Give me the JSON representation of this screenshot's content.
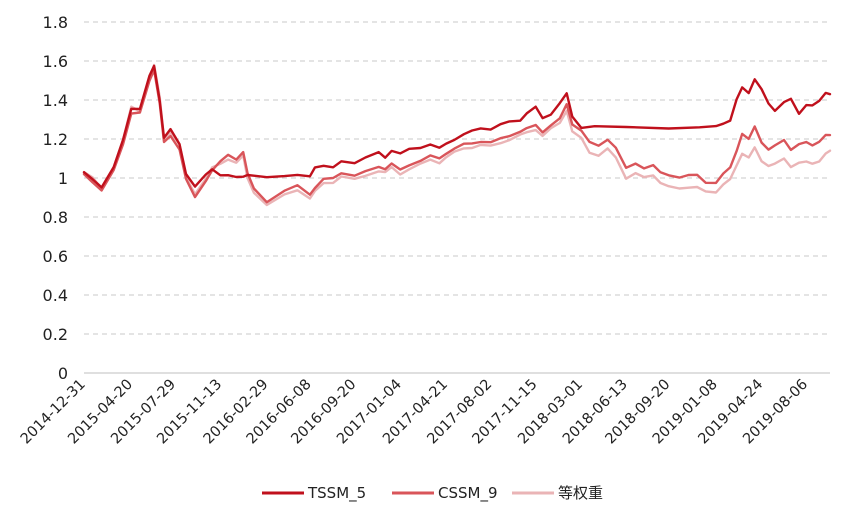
{
  "chart_data": {
    "type": "line",
    "title": "",
    "xlabel": "",
    "ylabel": "",
    "ylim": [
      0,
      1.8
    ],
    "yticks": [
      "0",
      "0.2",
      "0.4",
      "0.6",
      "0.8",
      "1",
      "1.2",
      "1.4",
      "1.6",
      "1.8"
    ],
    "xticks": [
      "2014-12-31",
      "2015-04-20",
      "2015-07-29",
      "2015-11-13",
      "2016-02-29",
      "2016-06-08",
      "2016-09-20",
      "2017-01-04",
      "2017-04-21",
      "2017-08-02",
      "2017-11-15",
      "2018-03-01",
      "2018-06-13",
      "2018-09-20",
      "2019-01-08",
      "2019-04-24",
      "2019-08-06"
    ],
    "grid": true,
    "legend_position": "bottom",
    "series": [
      {
        "name": "TSSM_5",
        "color": "#c0101c",
        "x": [
          "2014-12-31",
          "2015-01-20",
          "2015-02-10",
          "2015-03-10",
          "2015-04-01",
          "2015-04-20",
          "2015-05-10",
          "2015-06-01",
          "2015-06-12",
          "2015-06-25",
          "2015-07-05",
          "2015-07-20",
          "2015-08-10",
          "2015-08-25",
          "2015-09-15",
          "2015-10-10",
          "2015-10-25",
          "2015-11-13",
          "2015-12-01",
          "2015-12-20",
          "2016-01-05",
          "2016-01-15",
          "2016-01-30",
          "2016-02-29",
          "2016-04-10",
          "2016-05-10",
          "2016-06-08",
          "2016-06-20",
          "2016-07-10",
          "2016-08-01",
          "2016-08-20",
          "2016-09-20",
          "2016-10-15",
          "2016-11-15",
          "2016-11-30",
          "2016-12-15",
          "2017-01-04",
          "2017-01-25",
          "2017-02-20",
          "2017-03-15",
          "2017-04-05",
          "2017-04-21",
          "2017-05-10",
          "2017-06-01",
          "2017-06-20",
          "2017-07-10",
          "2017-08-02",
          "2017-08-25",
          "2017-09-15",
          "2017-10-10",
          "2017-10-25",
          "2017-11-15",
          "2017-12-01",
          "2017-12-20",
          "2018-01-10",
          "2018-01-26",
          "2018-02-08",
          "2018-03-01",
          "2018-04-01",
          "2018-06-13",
          "2018-09-20",
          "2018-12-01",
          "2019-01-08",
          "2019-01-25",
          "2019-02-10",
          "2019-02-25",
          "2019-03-10",
          "2019-03-25",
          "2019-04-08",
          "2019-04-24",
          "2019-05-10",
          "2019-05-25",
          "2019-06-15",
          "2019-07-01",
          "2019-07-20",
          "2019-08-06",
          "2019-08-20",
          "2019-09-05",
          "2019-09-20",
          "2019-09-30"
        ],
        "values": [
          1.03,
          1.0,
          0.95,
          1.05,
          1.2,
          1.36,
          1.35,
          1.52,
          1.58,
          1.4,
          1.2,
          1.25,
          1.18,
          1.02,
          0.95,
          1.02,
          1.05,
          1.01,
          1.01,
          1.01,
          1.01,
          1.01,
          1.01,
          1.01,
          1.01,
          1.01,
          1.01,
          1.06,
          1.06,
          1.05,
          1.09,
          1.08,
          1.1,
          1.13,
          1.11,
          1.14,
          1.12,
          1.15,
          1.16,
          1.17,
          1.15,
          1.18,
          1.2,
          1.22,
          1.24,
          1.26,
          1.25,
          1.27,
          1.29,
          1.3,
          1.33,
          1.36,
          1.31,
          1.33,
          1.38,
          1.43,
          1.32,
          1.26,
          1.26,
          1.26,
          1.26,
          1.26,
          1.26,
          1.28,
          1.3,
          1.4,
          1.46,
          1.44,
          1.51,
          1.45,
          1.38,
          1.35,
          1.39,
          1.4,
          1.33,
          1.38,
          1.37,
          1.39,
          1.44,
          1.43
        ]
      },
      {
        "name": "CSSM_9",
        "color": "#d9555a",
        "x": [
          "2014-12-31",
          "2015-01-20",
          "2015-02-10",
          "2015-03-10",
          "2015-04-01",
          "2015-04-20",
          "2015-05-10",
          "2015-06-01",
          "2015-06-12",
          "2015-06-25",
          "2015-07-05",
          "2015-07-20",
          "2015-08-10",
          "2015-08-25",
          "2015-09-15",
          "2015-10-10",
          "2015-10-25",
          "2015-11-13",
          "2015-12-01",
          "2015-12-20",
          "2016-01-05",
          "2016-01-15",
          "2016-01-30",
          "2016-02-29",
          "2016-04-10",
          "2016-05-10",
          "2016-06-08",
          "2016-06-20",
          "2016-07-10",
          "2016-08-01",
          "2016-08-20",
          "2016-09-20",
          "2016-10-15",
          "2016-11-15",
          "2016-11-30",
          "2016-12-15",
          "2017-01-04",
          "2017-01-25",
          "2017-02-20",
          "2017-03-15",
          "2017-04-05",
          "2017-04-21",
          "2017-05-10",
          "2017-06-01",
          "2017-06-20",
          "2017-07-10",
          "2017-08-02",
          "2017-08-25",
          "2017-09-15",
          "2017-10-10",
          "2017-10-25",
          "2017-11-15",
          "2017-12-01",
          "2017-12-20",
          "2018-01-10",
          "2018-01-26",
          "2018-02-08",
          "2018-03-01",
          "2018-03-20",
          "2018-04-10",
          "2018-05-01",
          "2018-05-20",
          "2018-06-13",
          "2018-07-05",
          "2018-07-25",
          "2018-08-15",
          "2018-09-01",
          "2018-09-20",
          "2018-10-15",
          "2018-11-05",
          "2018-11-25",
          "2018-12-15",
          "2019-01-08",
          "2019-01-25",
          "2019-02-10",
          "2019-02-25",
          "2019-03-10",
          "2019-03-25",
          "2019-04-08",
          "2019-04-24",
          "2019-05-10",
          "2019-05-25",
          "2019-06-15",
          "2019-07-01",
          "2019-07-20",
          "2019-08-06",
          "2019-08-20",
          "2019-09-05",
          "2019-09-20",
          "2019-09-30"
        ],
        "values": [
          1.02,
          0.98,
          0.93,
          1.04,
          1.18,
          1.33,
          1.33,
          1.5,
          1.56,
          1.38,
          1.18,
          1.22,
          1.15,
          0.99,
          0.9,
          0.99,
          1.04,
          1.08,
          1.12,
          1.1,
          1.13,
          1.02,
          0.95,
          0.88,
          0.93,
          0.96,
          0.92,
          0.95,
          0.99,
          1.0,
          1.03,
          1.01,
          1.03,
          1.06,
          1.05,
          1.07,
          1.04,
          1.07,
          1.09,
          1.11,
          1.1,
          1.13,
          1.15,
          1.17,
          1.18,
          1.19,
          1.18,
          1.2,
          1.22,
          1.24,
          1.25,
          1.27,
          1.24,
          1.27,
          1.3,
          1.38,
          1.28,
          1.24,
          1.18,
          1.17,
          1.2,
          1.15,
          1.05,
          1.08,
          1.05,
          1.06,
          1.03,
          1.02,
          1.0,
          1.01,
          1.02,
          0.98,
          0.97,
          1.02,
          1.06,
          1.14,
          1.22,
          1.2,
          1.27,
          1.18,
          1.14,
          1.17,
          1.2,
          1.14,
          1.17,
          1.19,
          1.17,
          1.18,
          1.22,
          1.22
        ]
      },
      {
        "name": "等权重",
        "color": "#eab4b6",
        "x": [
          "2014-12-31",
          "2015-01-20",
          "2015-02-10",
          "2015-03-10",
          "2015-04-01",
          "2015-04-20",
          "2015-05-10",
          "2015-06-01",
          "2015-06-12",
          "2015-06-25",
          "2015-07-05",
          "2015-07-20",
          "2015-08-10",
          "2015-08-25",
          "2015-09-15",
          "2015-10-10",
          "2015-10-25",
          "2015-11-13",
          "2015-12-01",
          "2015-12-20",
          "2016-01-05",
          "2016-01-15",
          "2016-01-30",
          "2016-02-29",
          "2016-04-10",
          "2016-05-10",
          "2016-06-08",
          "2016-06-20",
          "2016-07-10",
          "2016-08-01",
          "2016-08-20",
          "2016-09-20",
          "2016-10-15",
          "2016-11-15",
          "2016-11-30",
          "2016-12-15",
          "2017-01-04",
          "2017-01-25",
          "2017-02-20",
          "2017-03-15",
          "2017-04-05",
          "2017-04-21",
          "2017-05-10",
          "2017-06-01",
          "2017-06-20",
          "2017-07-10",
          "2017-08-02",
          "2017-08-25",
          "2017-09-15",
          "2017-10-10",
          "2017-10-25",
          "2017-11-15",
          "2017-12-01",
          "2017-12-20",
          "2018-01-10",
          "2018-01-26",
          "2018-02-08",
          "2018-03-01",
          "2018-03-20",
          "2018-04-10",
          "2018-05-01",
          "2018-05-20",
          "2018-06-13",
          "2018-07-05",
          "2018-07-25",
          "2018-08-15",
          "2018-09-01",
          "2018-09-20",
          "2018-10-15",
          "2018-11-05",
          "2018-11-25",
          "2018-12-15",
          "2019-01-08",
          "2019-01-25",
          "2019-02-10",
          "2019-02-25",
          "2019-03-10",
          "2019-03-25",
          "2019-04-08",
          "2019-04-24",
          "2019-05-10",
          "2019-05-25",
          "2019-06-15",
          "2019-07-01",
          "2019-07-20",
          "2019-08-06",
          "2019-08-20",
          "2019-09-05",
          "2019-09-20",
          "2019-09-30"
        ],
        "values": [
          1.03,
          1.0,
          0.94,
          1.06,
          1.2,
          1.36,
          1.34,
          1.52,
          1.58,
          1.41,
          1.2,
          1.24,
          1.17,
          1.0,
          0.92,
          1.0,
          1.05,
          1.07,
          1.1,
          1.08,
          1.11,
          1.0,
          0.93,
          0.86,
          0.91,
          0.94,
          0.9,
          0.93,
          0.97,
          0.98,
          1.01,
          0.99,
          1.01,
          1.04,
          1.03,
          1.05,
          1.02,
          1.05,
          1.07,
          1.09,
          1.08,
          1.11,
          1.13,
          1.15,
          1.16,
          1.17,
          1.16,
          1.18,
          1.2,
          1.22,
          1.23,
          1.25,
          1.22,
          1.25,
          1.28,
          1.35,
          1.24,
          1.2,
          1.13,
          1.12,
          1.15,
          1.1,
          1.0,
          1.03,
          1.0,
          1.01,
          0.98,
          0.96,
          0.94,
          0.95,
          0.96,
          0.93,
          0.92,
          0.97,
          1.0,
          1.06,
          1.12,
          1.11,
          1.16,
          1.08,
          1.06,
          1.08,
          1.1,
          1.05,
          1.08,
          1.09,
          1.07,
          1.08,
          1.13,
          1.14
        ]
      }
    ]
  }
}
